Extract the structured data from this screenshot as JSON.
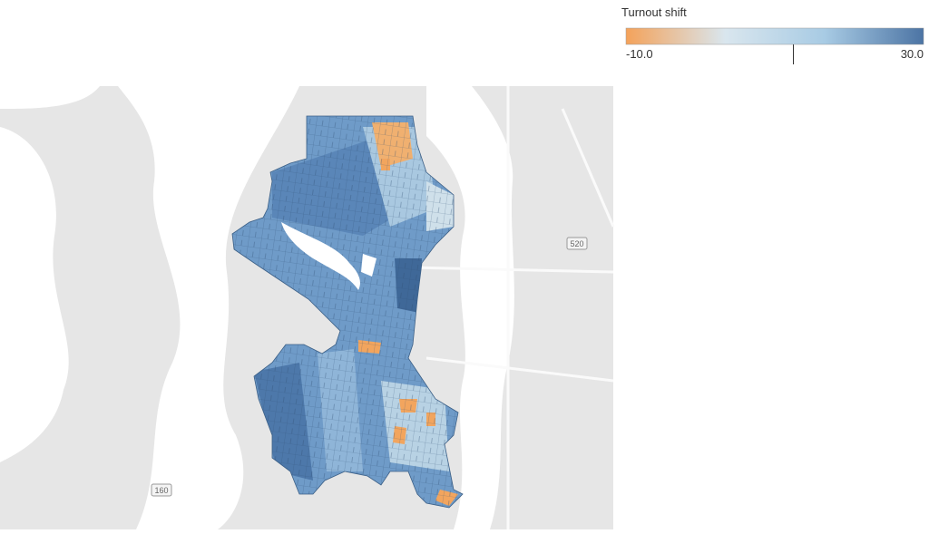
{
  "legend": {
    "title": "Turnout shift",
    "lim": [
      {
        "value": -10,
        "label": "-10.0"
      },
      {
        "value": 30,
        "label": "30.0"
      }
    ],
    "center": 12.5,
    "colors": [
      "#f4a25a",
      "#d9e6ee",
      "#a8cbe4",
      "#4c74a4"
    ]
  },
  "map": {
    "road_labels": [
      "520",
      "160"
    ]
  }
}
